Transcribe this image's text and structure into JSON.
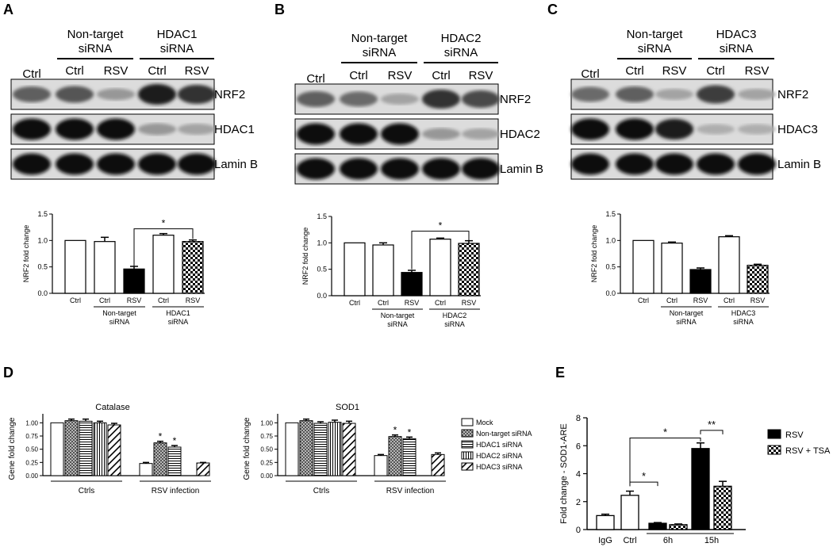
{
  "colors": {
    "ink": "#000000",
    "blot_light": "#9a9a9a",
    "blot_dark": "#111111",
    "paper": "#ffffff",
    "band_bg": "#d4d4d4"
  },
  "blots": [
    {
      "panel": "A",
      "group_labels": [
        "Non-target\nsiRNA",
        "HDAC1\nsiRNA"
      ],
      "lane_labels": [
        "Ctrl",
        "Ctrl",
        "RSV",
        "Ctrl",
        "RSV"
      ],
      "rows": [
        {
          "label": "NRF2",
          "intensity": [
            0.6,
            0.65,
            0.35,
            0.9,
            0.8
          ]
        },
        {
          "label": "HDAC1",
          "intensity": [
            0.95,
            0.95,
            0.95,
            0.35,
            0.3
          ]
        },
        {
          "label": "Lamin B",
          "intensity": [
            0.95,
            0.95,
            0.95,
            0.95,
            0.95
          ]
        }
      ]
    },
    {
      "panel": "B",
      "group_labels": [
        "Non-target\nsiRNA",
        "HDAC2\nsiRNA"
      ],
      "lane_labels": [
        "Ctrl",
        "Ctrl",
        "RSV",
        "Ctrl",
        "RSV"
      ],
      "rows": [
        {
          "label": "NRF2",
          "intensity": [
            0.6,
            0.55,
            0.3,
            0.8,
            0.7
          ]
        },
        {
          "label": "HDAC2",
          "intensity": [
            0.95,
            0.95,
            0.95,
            0.35,
            0.3
          ]
        },
        {
          "label": "Lamin B",
          "intensity": [
            0.95,
            0.95,
            0.95,
            0.95,
            0.95
          ]
        }
      ]
    },
    {
      "panel": "C",
      "group_labels": [
        "Non-target\nsiRNA",
        "HDAC3\nsiRNA"
      ],
      "lane_labels": [
        "Ctrl",
        "Ctrl",
        "RSV",
        "Ctrl",
        "RSV"
      ],
      "rows": [
        {
          "label": "NRF2",
          "intensity": [
            0.55,
            0.6,
            0.3,
            0.75,
            0.3
          ]
        },
        {
          "label": "HDAC3",
          "intensity": [
            0.95,
            0.95,
            0.9,
            0.25,
            0.25
          ]
        },
        {
          "label": "Lamin B",
          "intensity": [
            0.95,
            0.95,
            0.95,
            0.95,
            0.95
          ]
        }
      ]
    }
  ],
  "chart_data": [
    {
      "panel": "A",
      "type": "bar",
      "ylabel": "NRF2 fold change",
      "ylim": [
        0,
        1.5
      ],
      "yticks": [
        "0.0",
        "0.5",
        "1.0",
        "1.5"
      ],
      "categories": [
        "Ctrl",
        "Ctrl",
        "RSV",
        "Ctrl",
        "RSV"
      ],
      "group_labels": [
        {
          "text": "Non-target\nsiRNA",
          "from": 1,
          "to": 2
        },
        {
          "text": "HDAC1\nsiRNA",
          "from": 3,
          "to": 4
        }
      ],
      "values": [
        1.0,
        0.98,
        0.46,
        1.1,
        0.98
      ],
      "errors": [
        0.0,
        0.08,
        0.05,
        0.03,
        0.03
      ],
      "fills": [
        "white",
        "white",
        "black",
        "white",
        "check"
      ],
      "brackets": [
        {
          "from": 2,
          "to": 4,
          "label": "*",
          "y": 1.22,
          "open_to": 0.52,
          "drop_to": 1.03
        }
      ]
    },
    {
      "panel": "B",
      "type": "bar",
      "ylabel": "NRF2 fold change",
      "ylim": [
        0,
        1.5
      ],
      "yticks": [
        "0.0",
        "0.5",
        "1.0",
        "1.5"
      ],
      "categories": [
        "Ctrl",
        "Ctrl",
        "RSV",
        "Ctrl",
        "RSV"
      ],
      "group_labels": [
        {
          "text": "Non-target\nsiRNA",
          "from": 1,
          "to": 2
        },
        {
          "text": "HDAC2\nsiRNA",
          "from": 3,
          "to": 4
        }
      ],
      "values": [
        1.0,
        0.96,
        0.44,
        1.07,
        0.99
      ],
      "errors": [
        0.0,
        0.04,
        0.04,
        0.02,
        0.05
      ],
      "fills": [
        "white",
        "white",
        "black",
        "white",
        "check"
      ],
      "brackets": [
        {
          "from": 2,
          "to": 4,
          "label": "*",
          "y": 1.22,
          "open_to": 0.5,
          "drop_to": 1.05
        }
      ]
    },
    {
      "panel": "C",
      "type": "bar",
      "ylabel": "NRF2 fold change",
      "ylim": [
        0,
        1.5
      ],
      "yticks": [
        "0.0",
        "0.5",
        "1.0",
        "1.5"
      ],
      "categories": [
        "Ctrl",
        "Ctrl",
        "RSV",
        "Ctrl",
        "RSV"
      ],
      "group_labels": [
        {
          "text": "Non-target\nsiRNA",
          "from": 1,
          "to": 2
        },
        {
          "text": "HDAC3\nsiRNA",
          "from": 3,
          "to": 4
        }
      ],
      "values": [
        1.0,
        0.95,
        0.45,
        1.07,
        0.53
      ],
      "errors": [
        0.0,
        0.02,
        0.03,
        0.02,
        0.02
      ],
      "fills": [
        "white",
        "white",
        "black",
        "white",
        "check"
      ],
      "brackets": []
    },
    {
      "panel": "D",
      "type": "bar",
      "title": "Catalase",
      "ylabel": "Gene fold change",
      "ylim": [
        0,
        1.2
      ],
      "yticks": [
        "0.00",
        "0.25",
        "0.50",
        "0.75",
        "1.00"
      ],
      "groups": [
        "Ctrls",
        "RSV infection"
      ],
      "series": [
        {
          "name": "Mock",
          "values": [
            1.0,
            0.23
          ],
          "errors": [
            0.0,
            0.02
          ],
          "pattern": "white"
        },
        {
          "name": "Non-target siRNA",
          "values": [
            1.04,
            0.62
          ],
          "errors": [
            0.03,
            0.03
          ],
          "pattern": "dots"
        },
        {
          "name": "HDAC1 siRNA",
          "values": [
            1.03,
            0.54
          ],
          "errors": [
            0.04,
            0.03
          ],
          "pattern": "hlines"
        },
        {
          "name": "HDAC2 siRNA",
          "values": [
            1.0,
            0.0
          ],
          "errors": [
            0.03,
            0.0
          ],
          "pattern": "vlines"
        },
        {
          "name": "HDAC3 siRNA",
          "values": [
            0.96,
            0.24
          ],
          "errors": [
            0.03,
            0.01
          ],
          "pattern": "diag"
        }
      ],
      "stars": [
        {
          "group": 1,
          "series": 1,
          "label": "*"
        },
        {
          "group": 1,
          "series": 2,
          "label": "*"
        }
      ]
    },
    {
      "panel": "D",
      "type": "bar",
      "title": "SOD1",
      "ylabel": "Gene fold change",
      "ylim": [
        0,
        1.2
      ],
      "yticks": [
        "0.00",
        "0.25",
        "0.50",
        "0.75",
        "1.00"
      ],
      "groups": [
        "Ctrls",
        "RSV infection"
      ],
      "series": [
        {
          "name": "Mock",
          "values": [
            1.0,
            0.38
          ],
          "errors": [
            0.0,
            0.02
          ],
          "pattern": "white"
        },
        {
          "name": "Non-target siRNA",
          "values": [
            1.04,
            0.74
          ],
          "errors": [
            0.03,
            0.03
          ],
          "pattern": "dots"
        },
        {
          "name": "HDAC1 siRNA",
          "values": [
            0.99,
            0.7
          ],
          "errors": [
            0.03,
            0.03
          ],
          "pattern": "hlines"
        },
        {
          "name": "HDAC2 siRNA",
          "values": [
            1.01,
            0.0
          ],
          "errors": [
            0.04,
            0.0
          ],
          "pattern": "vlines"
        },
        {
          "name": "HDAC3 siRNA",
          "values": [
            0.99,
            0.4
          ],
          "errors": [
            0.04,
            0.03
          ],
          "pattern": "diag"
        }
      ],
      "stars": [
        {
          "group": 1,
          "series": 1,
          "label": "*"
        },
        {
          "group": 1,
          "series": 2,
          "label": "*"
        }
      ]
    },
    {
      "panel": "E",
      "type": "bar",
      "ylabel": "Fold change - SOD1-ARE",
      "ylim": [
        0,
        8
      ],
      "yticks": [
        "0",
        "2",
        "4",
        "6",
        "8"
      ],
      "bars": [
        {
          "cat": "IgG",
          "value": 1.0,
          "error": 0.1,
          "fill": "white"
        },
        {
          "cat": "Ctrl",
          "value": 2.45,
          "error": 0.3,
          "fill": "white"
        },
        {
          "cat": "6h",
          "value": 0.45,
          "error": 0.05,
          "fill": "black"
        },
        {
          "cat": "6h",
          "value": 0.35,
          "error": 0.05,
          "fill": "check"
        },
        {
          "cat": "15h",
          "value": 5.8,
          "error": 0.4,
          "fill": "black"
        },
        {
          "cat": "15h",
          "value": 3.1,
          "error": 0.35,
          "fill": "check"
        }
      ],
      "xlabels": [
        "IgG",
        "Ctrl",
        "6h",
        "15h"
      ],
      "legend": [
        {
          "name": "RSV",
          "fill": "black"
        },
        {
          "name": "RSV + TSA",
          "fill": "check"
        }
      ],
      "brackets": [
        {
          "from": 1,
          "to": 2,
          "label": "*",
          "y": 3.4
        },
        {
          "from": 4,
          "to": 5,
          "label": "**",
          "y": 7.1
        }
      ],
      "long_bracket": {
        "from": 1,
        "to": 4,
        "label": "*",
        "y": 6.55
      }
    }
  ],
  "panel_letters": [
    "A",
    "B",
    "C",
    "D",
    "E"
  ]
}
